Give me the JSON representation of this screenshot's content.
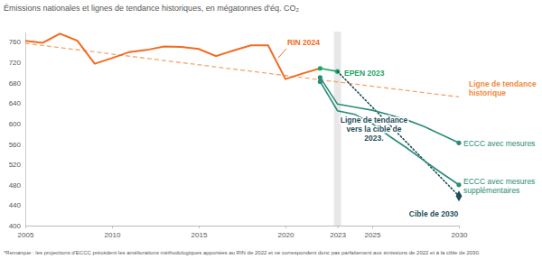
{
  "chart_data": {
    "type": "line",
    "title": "Émissions nationales et lignes de tendance historiques, en mégatonnes d'éq. CO₂",
    "note": "*Remarque : les projections d'ECCC précèdent les améliorations méthodologiques apportées au RIN de 2022 et ne correspondent donc pas parfaitement aux émissions de 2022 et à la cible de 2030.",
    "xlim": [
      2005,
      2030
    ],
    "xticks": [
      2005,
      2010,
      2015,
      2020,
      2023,
      2025,
      2030
    ],
    "ylim": [
      400,
      780
    ],
    "yticks": [
      400,
      440,
      480,
      520,
      560,
      600,
      640,
      680,
      720,
      760
    ],
    "grid": false,
    "highlight_x": 2023,
    "series": [
      {
        "name": "RIN 2024",
        "color": "#f26b21",
        "line_style": "solid",
        "marker": "none",
        "x": [
          2005,
          2006,
          2007,
          2008,
          2009,
          2010,
          2011,
          2012,
          2013,
          2014,
          2015,
          2016,
          2017,
          2018,
          2019,
          2020,
          2021,
          2022
        ],
        "values": [
          762,
          758,
          776,
          762,
          717,
          728,
          740,
          744,
          751,
          750,
          746,
          732,
          743,
          753,
          753,
          687,
          698,
          708
        ]
      },
      {
        "name": "Ligne de tendance historique",
        "color": "#f7a46b",
        "line_style": "dashed",
        "marker": "none",
        "x": [
          2005,
          2030
        ],
        "values": [
          757,
          652
        ]
      },
      {
        "name": "EPEN 2023",
        "color": "#1fa463",
        "line_style": "solid",
        "marker": "circle",
        "x": [
          2022,
          2023
        ],
        "values": [
          708,
          702
        ]
      },
      {
        "name": "Ligne de tendance vers la cible de 2023.",
        "color": "#1f4e5a",
        "line_style": "dotted",
        "marker": "none",
        "x": [
          2023,
          2030
        ],
        "values": [
          702,
          458
        ]
      },
      {
        "name": "ECCC avec mesures",
        "color": "#2a8c78",
        "line_style": "solid",
        "marker": "circle",
        "x": [
          2022,
          2023,
          2024,
          2025,
          2026,
          2027,
          2028,
          2029,
          2030
        ],
        "values": [
          690,
          638,
          632,
          626,
          617,
          607,
          594,
          578,
          562
        ]
      },
      {
        "name": "ECCC avec mesures supplémentaires",
        "color": "#2a8c78",
        "line_style": "solid",
        "marker": "circle",
        "x": [
          2022,
          2023,
          2024,
          2025,
          2026,
          2027,
          2028,
          2029,
          2030
        ],
        "values": [
          682,
          625,
          618,
          600,
          575,
          552,
          527,
          503,
          480
        ]
      },
      {
        "name": "Cible de 2030",
        "color": "#1f4e5a",
        "type": "scatter",
        "line_style": "none",
        "marker": "diamond",
        "x": [
          2030
        ],
        "values": [
          458
        ]
      }
    ]
  }
}
